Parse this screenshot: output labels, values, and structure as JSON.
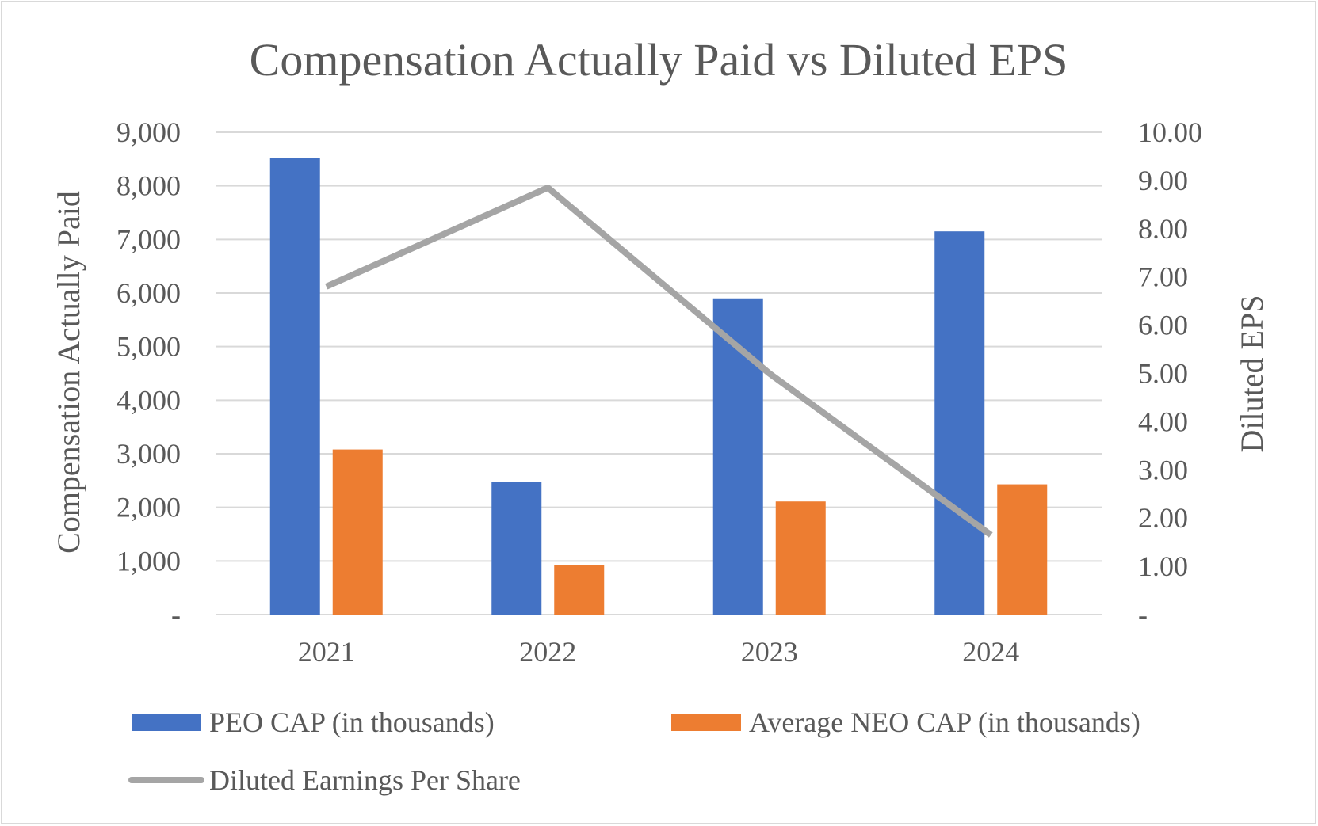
{
  "chart_data": {
    "type": "bar",
    "title": "Compensation Actually Paid vs Diluted EPS",
    "categories": [
      "2021",
      "2022",
      "2023",
      "2024"
    ],
    "series": [
      {
        "name": "PEO CAP (in thousands)",
        "kind": "bar",
        "axis": "left",
        "color": "#4472c4",
        "values": [
          8520,
          2480,
          5900,
          7150
        ]
      },
      {
        "name": "Average NEO CAP (in thousands)",
        "kind": "bar",
        "axis": "left",
        "color": "#ed7d31",
        "values": [
          3080,
          920,
          2110,
          2430
        ]
      },
      {
        "name": "Diluted Earnings Per Share",
        "kind": "line",
        "axis": "right",
        "color": "#a5a5a5",
        "values": [
          6.8,
          8.85,
          5.0,
          1.65
        ]
      }
    ],
    "y_left": {
      "label": "Compensation Actually Paid",
      "ylim": [
        0,
        9000
      ],
      "ticks": [
        "-",
        "1,000",
        "2,000",
        "3,000",
        "4,000",
        "5,000",
        "6,000",
        "7,000",
        "8,000",
        "9,000"
      ]
    },
    "y_right": {
      "label": "Diluted EPS",
      "ylim": [
        0,
        10
      ],
      "ticks": [
        "-",
        "1.00",
        "2.00",
        "3.00",
        "4.00",
        "5.00",
        "6.00",
        "7.00",
        "8.00",
        "9.00",
        "10.00"
      ]
    },
    "grid": true,
    "legend_position": "bottom"
  }
}
